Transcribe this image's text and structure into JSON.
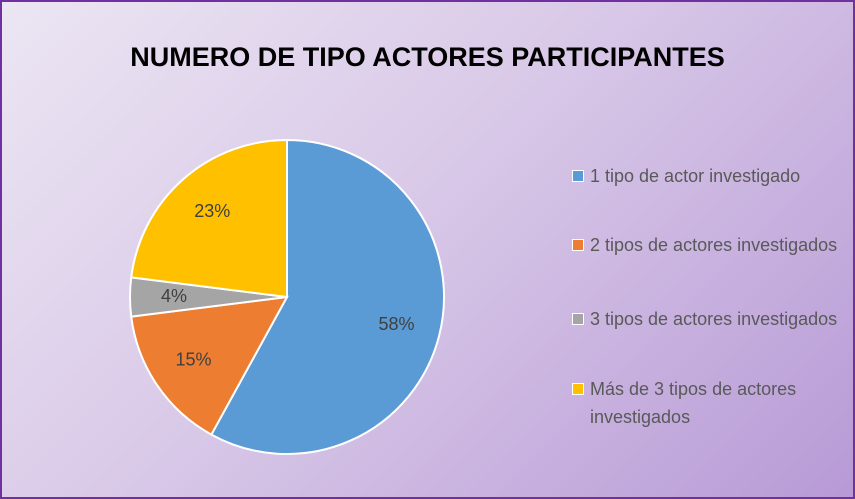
{
  "chart_data": {
    "type": "pie",
    "title": "NUMERO DE TIPO ACTORES PARTICIPANTES",
    "categories": [
      "1 tipo de actor investigado",
      "2 tipos de actores investigados",
      "3 tipos de actores investigados",
      "Más de 3 tipos de actores investigados"
    ],
    "values": [
      58,
      15,
      4,
      23
    ],
    "value_labels": [
      "58%",
      "15%",
      "4%",
      "23%"
    ],
    "colors": [
      "#5b9bd5",
      "#ed7d31",
      "#a5a5a5",
      "#ffc000"
    ],
    "legend": "right"
  }
}
